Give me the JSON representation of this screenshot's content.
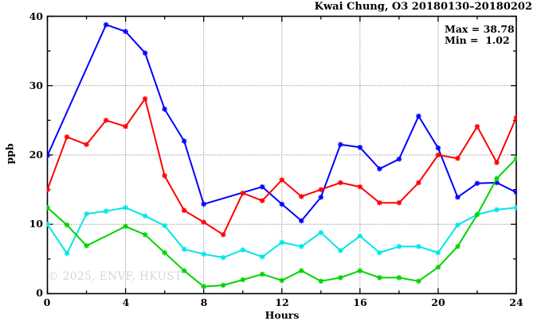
{
  "title": "Kwai Chung, O3 20180130–20180202",
  "annotation": {
    "max_label": "Max = 38.78",
    "min_label": "Min =  1.02"
  },
  "watermark": "© 2025, ENVF, HKUST",
  "axis": {
    "xlabel": "Hours",
    "ylabel": "ppb",
    "x_tick_labels": [
      "0",
      "4",
      "8",
      "12",
      "16",
      "20",
      "24"
    ],
    "y_tick_labels": [
      "0",
      "10",
      "20",
      "30",
      "40"
    ]
  },
  "chart_data": {
    "type": "line",
    "title": "Kwai Chung, O3 20180130–20180202",
    "xlabel": "Hours",
    "ylabel": "ppb",
    "xlim": [
      0,
      24
    ],
    "ylim": [
      0,
      40
    ],
    "grid": true,
    "legend": "none",
    "max_value": 38.78,
    "min_value": 1.02,
    "x_major_ticks": [
      0,
      4,
      8,
      12,
      16,
      20,
      24
    ],
    "x_minor_ticks": [
      2,
      6,
      10,
      14,
      18,
      22
    ],
    "y_major_ticks": [
      0,
      10,
      20,
      30,
      40
    ],
    "y_minor_ticks": [
      5,
      15,
      25,
      35
    ],
    "grid_x": [
      4,
      8,
      12,
      16,
      20
    ],
    "grid_y": [
      10,
      20,
      30
    ],
    "x": [
      0,
      1,
      2,
      3,
      4,
      5,
      6,
      7,
      8,
      9,
      10,
      11,
      12,
      13,
      14,
      15,
      16,
      17,
      18,
      19,
      20,
      21,
      22,
      23,
      24
    ],
    "marker": "asterisk",
    "series": [
      {
        "name": "blue",
        "color": "#0000ff",
        "values": [
          19.9,
          null,
          null,
          38.78,
          37.8,
          34.7,
          26.6,
          22.0,
          12.9,
          null,
          null,
          15.4,
          12.9,
          10.5,
          13.9,
          21.5,
          21.1,
          18.0,
          19.4,
          25.6,
          21.0,
          13.9,
          15.9,
          16.0,
          14.6
        ]
      },
      {
        "name": "red",
        "color": "#ff0000",
        "values": [
          15.0,
          22.6,
          21.5,
          25.0,
          24.1,
          28.1,
          17.0,
          12.0,
          10.3,
          8.5,
          14.5,
          13.4,
          16.4,
          14.0,
          15.0,
          16.0,
          15.4,
          13.1,
          13.1,
          16.0,
          20.0,
          19.5,
          24.1,
          18.9,
          25.4
        ]
      },
      {
        "name": "cyan",
        "color": "#00e6e6",
        "values": [
          10.0,
          5.8,
          11.5,
          11.9,
          12.4,
          11.2,
          9.8,
          6.4,
          5.7,
          5.2,
          6.3,
          5.3,
          7.4,
          6.8,
          8.8,
          6.2,
          8.3,
          5.9,
          6.8,
          6.8,
          5.9,
          9.9,
          11.4,
          12.1,
          12.4
        ]
      },
      {
        "name": "green",
        "color": "#00d300",
        "values": [
          12.4,
          9.9,
          6.9,
          null,
          9.7,
          8.5,
          5.9,
          3.3,
          1.02,
          1.2,
          2.0,
          2.8,
          1.9,
          3.3,
          1.8,
          2.3,
          3.3,
          2.3,
          2.3,
          1.8,
          3.8,
          6.8,
          11.4,
          16.6,
          19.5
        ]
      }
    ]
  }
}
